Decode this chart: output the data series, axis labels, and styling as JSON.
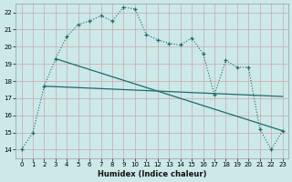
{
  "xlabel": "Humidex (Indice chaleur)",
  "bg_color": "#cce8e8",
  "grid_color": "#aacccc",
  "line_color": "#1a6b6b",
  "xlim": [
    -0.5,
    23.5
  ],
  "ylim": [
    13.5,
    22.5
  ],
  "xticks": [
    0,
    1,
    2,
    3,
    4,
    5,
    6,
    7,
    8,
    9,
    10,
    11,
    12,
    13,
    14,
    15,
    16,
    17,
    18,
    19,
    20,
    21,
    22,
    23
  ],
  "yticks": [
    14,
    15,
    16,
    17,
    18,
    19,
    20,
    21,
    22
  ],
  "line1_x": [
    0,
    1,
    2,
    3,
    4,
    5,
    6,
    7,
    8,
    9,
    10,
    11,
    12,
    13,
    14,
    15,
    16,
    17,
    18,
    19,
    20,
    21,
    22,
    23
  ],
  "line1_y": [
    14.0,
    15.0,
    17.7,
    19.3,
    20.6,
    21.3,
    21.5,
    21.8,
    21.5,
    22.3,
    22.2,
    20.7,
    20.4,
    20.2,
    20.1,
    20.5,
    19.6,
    17.2,
    19.2,
    18.8,
    18.8,
    15.2,
    14.0,
    15.1
  ],
  "line2_x": [
    2,
    23
  ],
  "line2_y": [
    17.7,
    17.1
  ],
  "line3_x": [
    3,
    23
  ],
  "line3_y": [
    19.3,
    15.1
  ]
}
